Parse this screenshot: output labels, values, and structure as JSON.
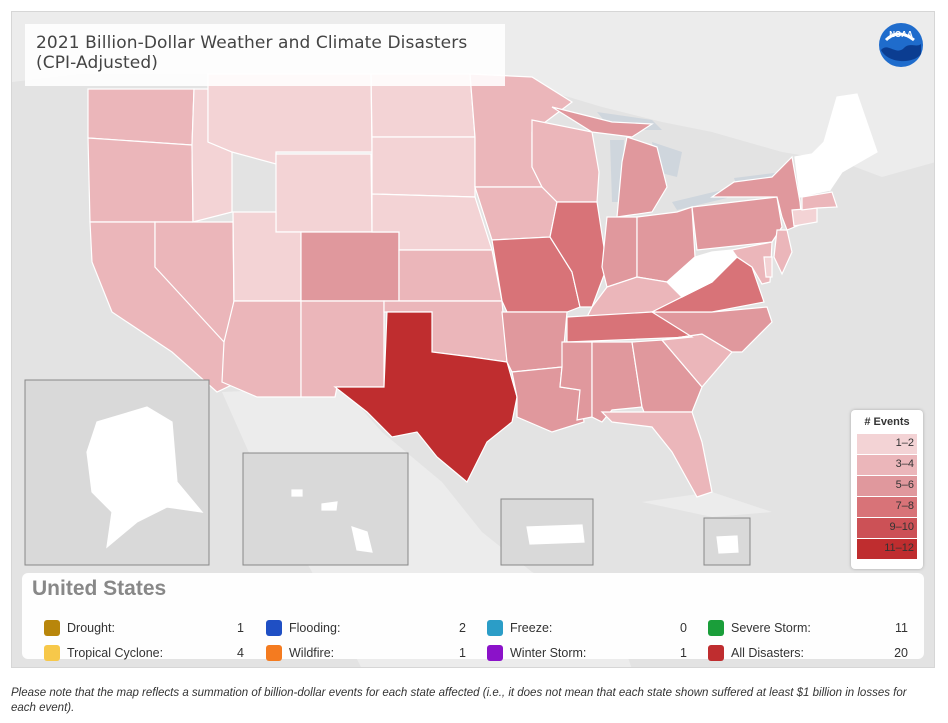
{
  "title": "2021 Billion-Dollar Weather and Climate Disasters (CPI-Adjusted)",
  "logo_text": "NOAA",
  "legend": {
    "title": "# Events",
    "bins": [
      {
        "label": "1–2",
        "color": "#f3d3d5"
      },
      {
        "label": "3–4",
        "color": "#ebb6ba"
      },
      {
        "label": "5–6",
        "color": "#e0989d"
      },
      {
        "label": "7–8",
        "color": "#d87378"
      },
      {
        "label": "9–10",
        "color": "#cc5156"
      },
      {
        "label": "11–12",
        "color": "#bf2d2f"
      }
    ]
  },
  "summary": {
    "title": "United States",
    "categories": [
      {
        "label": "Drought:",
        "value": "1",
        "color": "#b8860b"
      },
      {
        "label": "Flooding:",
        "value": "2",
        "color": "#1f4fc4"
      },
      {
        "label": "Freeze:",
        "value": "0",
        "color": "#2b9dc7"
      },
      {
        "label": "Severe Storm:",
        "value": "11",
        "color": "#1a9e3a"
      },
      {
        "label": "Tropical Cyclone:",
        "value": "4",
        "color": "#f7c84a"
      },
      {
        "label": "Wildfire:",
        "value": "1",
        "color": "#f47b20"
      },
      {
        "label": "Winter Storm:",
        "value": "1",
        "color": "#8b12c9"
      },
      {
        "label": "All Disasters:",
        "value": "20",
        "color": "#bf2d2f"
      }
    ]
  },
  "states": [
    {
      "name": "Texas",
      "events": 12
    },
    {
      "name": "Illinois",
      "events": 8
    },
    {
      "name": "Missouri",
      "events": 8
    },
    {
      "name": "Virginia",
      "events": 8
    },
    {
      "name": "Tennessee",
      "events": 7
    },
    {
      "name": "Colorado",
      "events": 6
    },
    {
      "name": "Mississippi",
      "events": 6
    },
    {
      "name": "Alabama",
      "events": 6
    },
    {
      "name": "Georgia",
      "events": 6
    },
    {
      "name": "Michigan",
      "events": 6
    },
    {
      "name": "Indiana",
      "events": 6
    },
    {
      "name": "Ohio",
      "events": 6
    },
    {
      "name": "Pennsylvania",
      "events": 6
    },
    {
      "name": "New York",
      "events": 6
    },
    {
      "name": "North Carolina",
      "events": 6
    },
    {
      "name": "Arkansas",
      "events": 6
    },
    {
      "name": "Louisiana",
      "events": 5
    },
    {
      "name": "Washington",
      "events": 4
    },
    {
      "name": "Oregon",
      "events": 4
    },
    {
      "name": "California",
      "events": 4
    },
    {
      "name": "Nevada",
      "events": 4
    },
    {
      "name": "Arizona",
      "events": 4
    },
    {
      "name": "New Mexico",
      "events": 4
    },
    {
      "name": "Kansas",
      "events": 4
    },
    {
      "name": "Oklahoma",
      "events": 4
    },
    {
      "name": "Minnesota",
      "events": 4
    },
    {
      "name": "Iowa",
      "events": 4
    },
    {
      "name": "Wisconsin",
      "events": 4
    },
    {
      "name": "Kentucky",
      "events": 4
    },
    {
      "name": "South Carolina",
      "events": 4
    },
    {
      "name": "Florida",
      "events": 4
    },
    {
      "name": "New Jersey",
      "events": 4
    },
    {
      "name": "Maryland",
      "events": 4
    },
    {
      "name": "Idaho",
      "events": 2
    },
    {
      "name": "Montana",
      "events": 2
    },
    {
      "name": "Wyoming",
      "events": 2
    },
    {
      "name": "Utah",
      "events": 2
    },
    {
      "name": "North Dakota",
      "events": 2
    },
    {
      "name": "South Dakota",
      "events": 2
    },
    {
      "name": "Nebraska",
      "events": 2
    },
    {
      "name": "Connecticut",
      "events": 2
    },
    {
      "name": "Massachusetts",
      "events": 3
    },
    {
      "name": "Delaware",
      "events": 2
    },
    {
      "name": "West Virginia",
      "events": 0
    },
    {
      "name": "Maine",
      "events": 0
    },
    {
      "name": "New Hampshire",
      "events": 0
    },
    {
      "name": "Vermont",
      "events": 0
    },
    {
      "name": "Alaska",
      "events": 0
    },
    {
      "name": "Hawaii",
      "events": 0
    },
    {
      "name": "Puerto Rico",
      "events": 0
    },
    {
      "name": "Virgin Islands",
      "events": 0
    }
  ],
  "footnote": "Please note that the map reflects a summation of billion-dollar events for each state affected (i.e., it does not mean that each state shown suffered at least $1 billion in losses for each event)."
}
